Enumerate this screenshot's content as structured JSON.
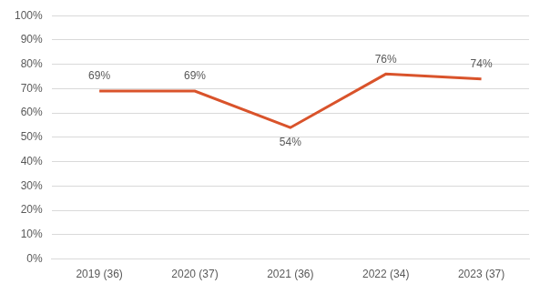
{
  "chart_data": {
    "type": "line",
    "categories": [
      "2019 (36)",
      "2020 (37)",
      "2021 (36)",
      "2022 (34)",
      "2023 (37)"
    ],
    "values": [
      69,
      69,
      54,
      76,
      74
    ],
    "value_labels": [
      "69%",
      "69%",
      "54%",
      "76%",
      "74%"
    ],
    "color": "#d9532b",
    "ylim": [
      0,
      100
    ],
    "yticks": [
      {
        "value": 0,
        "label": "0%"
      },
      {
        "value": 10,
        "label": "10%"
      },
      {
        "value": 20,
        "label": "20%"
      },
      {
        "value": 30,
        "label": "30%"
      },
      {
        "value": 40,
        "label": "40%"
      },
      {
        "value": 50,
        "label": "50%"
      },
      {
        "value": 60,
        "label": "60%"
      },
      {
        "value": 70,
        "label": "70%"
      },
      {
        "value": 80,
        "label": "80%"
      },
      {
        "value": 90,
        "label": "90%"
      },
      {
        "value": 100,
        "label": "100%"
      }
    ],
    "grid": true,
    "data_labels": true
  }
}
